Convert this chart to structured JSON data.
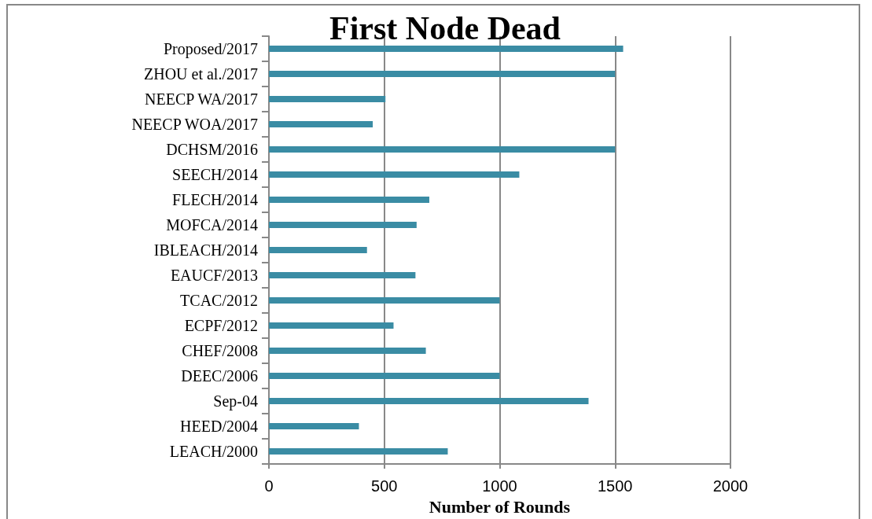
{
  "chart_data": {
    "type": "bar",
    "orientation": "horizontal",
    "title": "First Node Dead",
    "xlabel": "Number of Rounds",
    "categories": [
      "Proposed/2017",
      "ZHOU et al./2017",
      "NEECP WA/2017",
      "NEECP WOA/2017",
      "DCHSM/2016",
      "SEECH/2014",
      "FLECH/2014",
      "MOFCA/2014",
      "IBLEACH/2014",
      "EAUCF/2013",
      "TCAC/2012",
      "ECPF/2012",
      "CHEF/2008",
      "DEEC/2006",
      "Sep-04",
      "HEED/2004",
      "LEACH/2000"
    ],
    "values": [
      1535,
      1500,
      505,
      450,
      1500,
      1085,
      695,
      640,
      425,
      635,
      1000,
      540,
      680,
      1000,
      1385,
      390,
      775
    ],
    "color": "#3a8ca4",
    "xlim": [
      0,
      2000
    ],
    "xticks": [
      0,
      500,
      1000,
      1500,
      2000
    ],
    "grid": "x"
  }
}
